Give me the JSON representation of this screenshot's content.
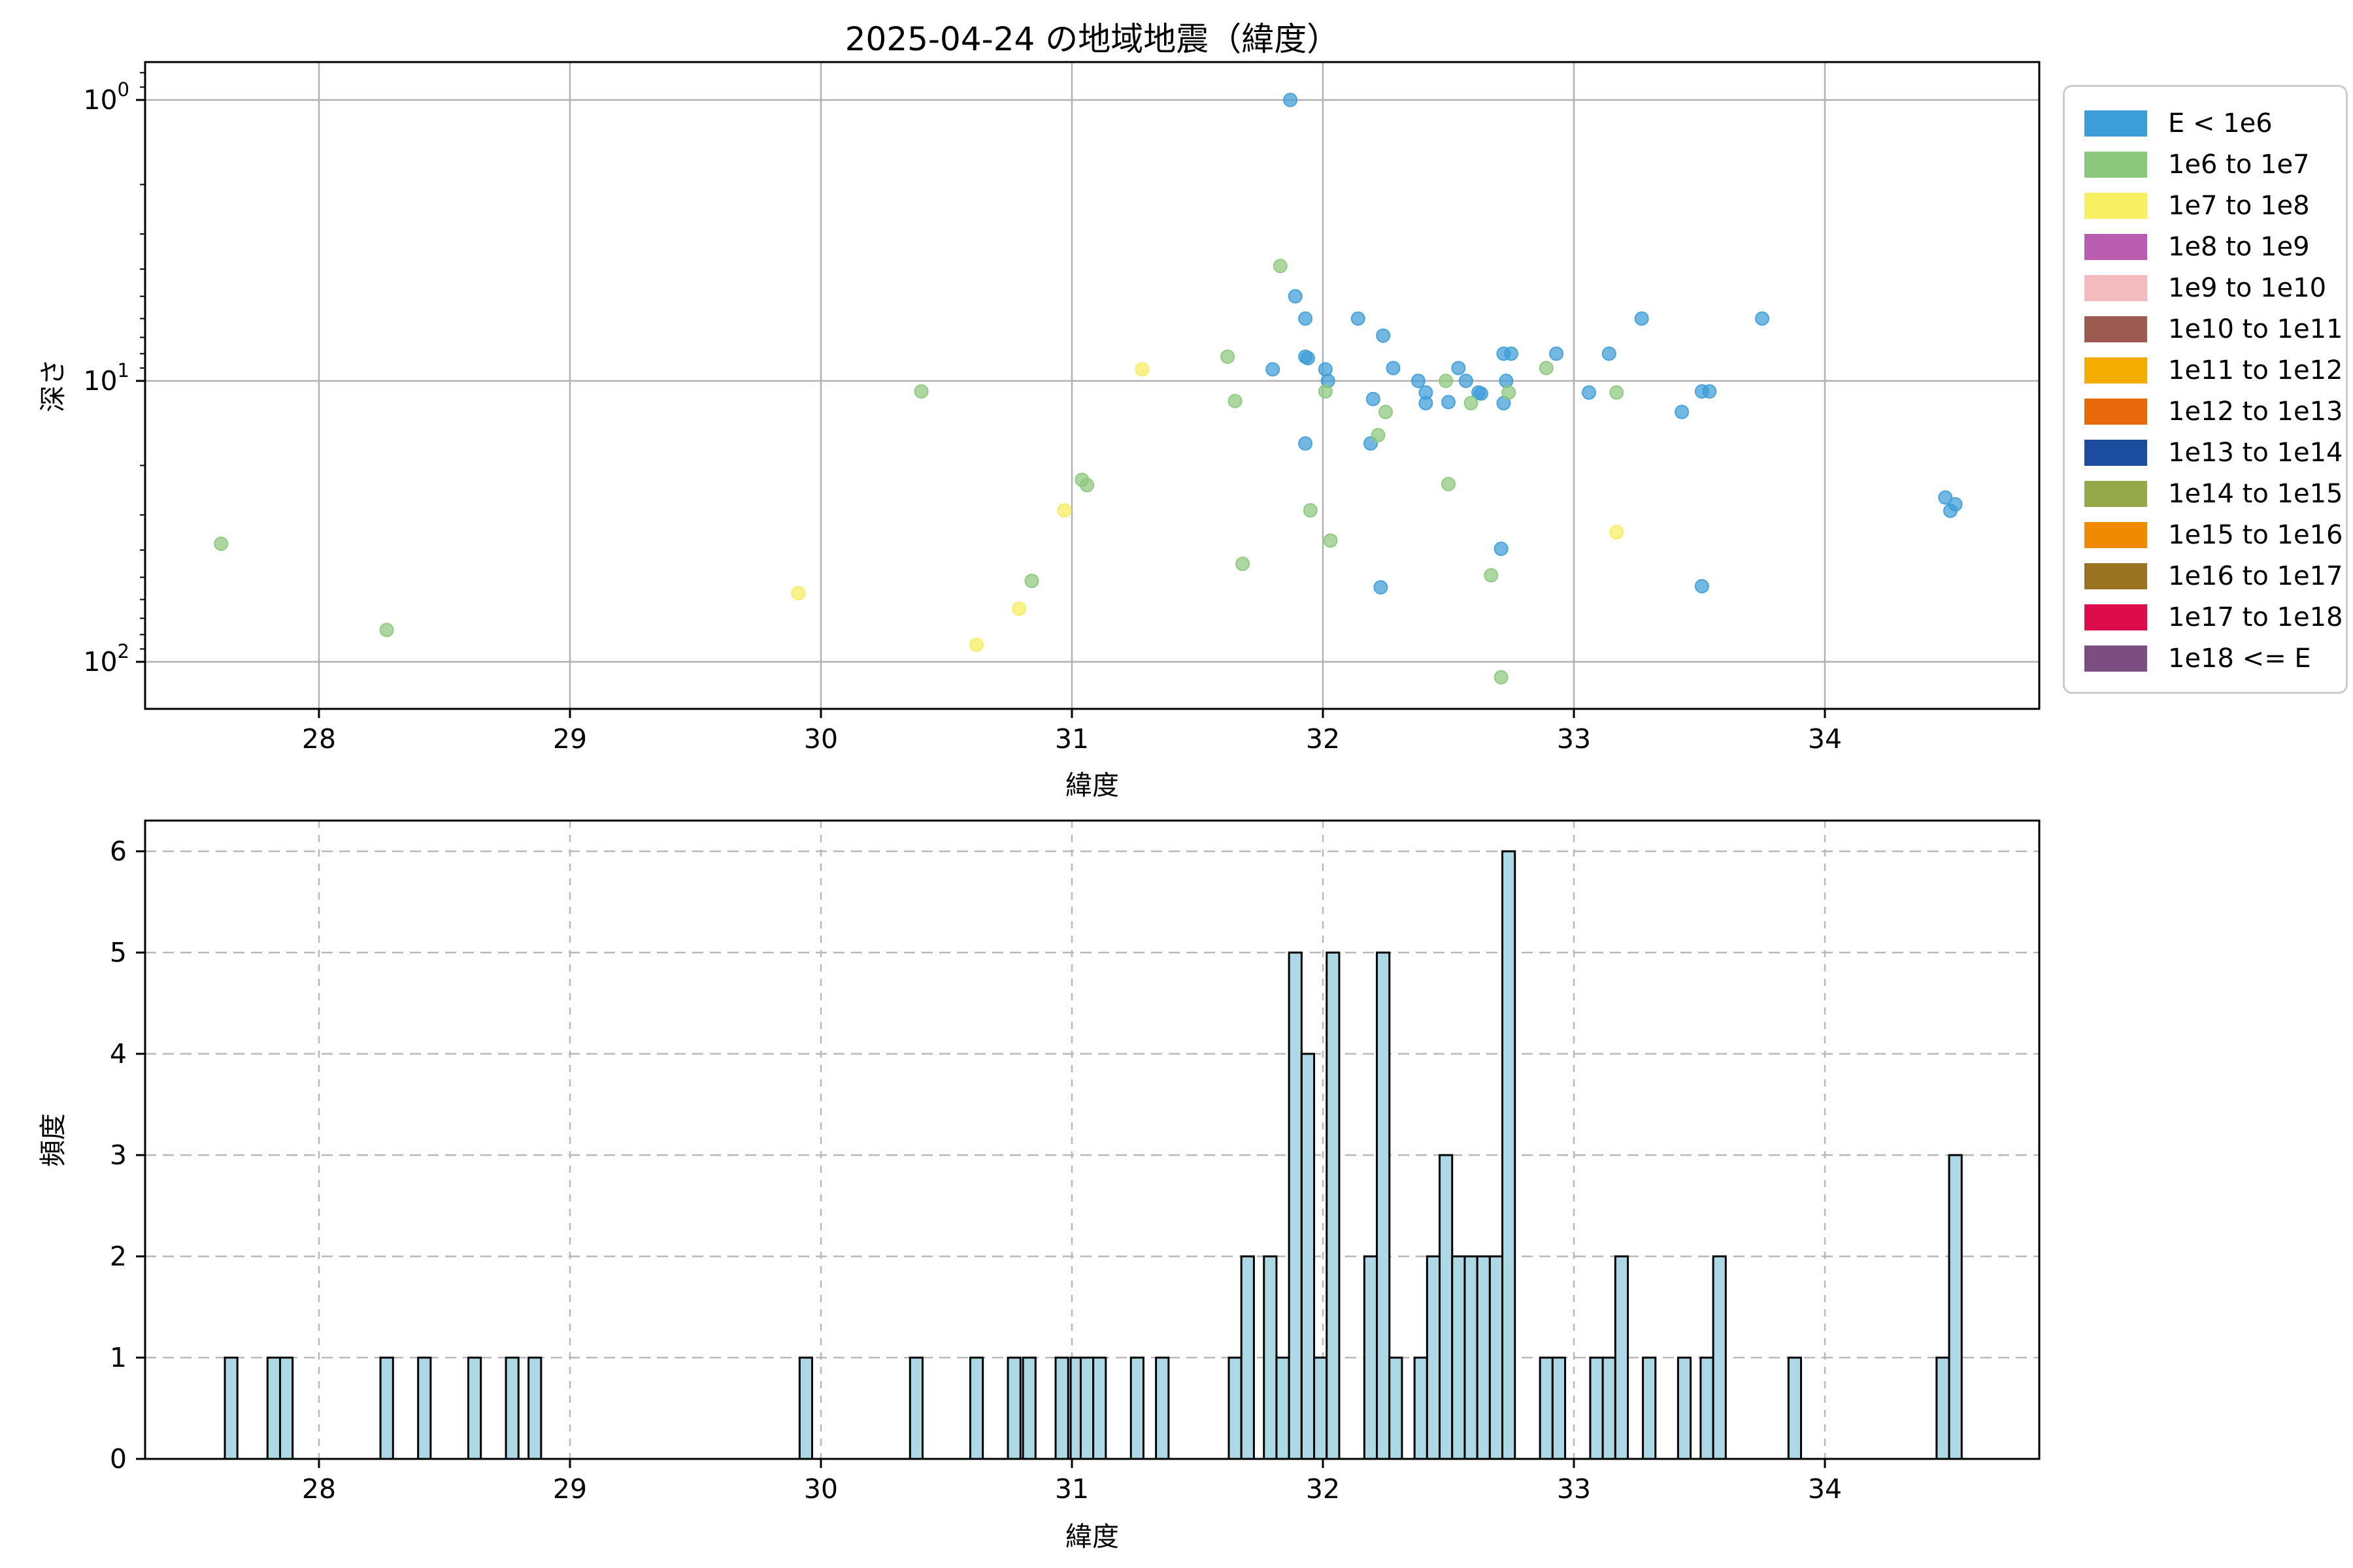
{
  "title": "2025-04-24 の地域地震（緯度）",
  "colors": {
    "background": "#ffffff",
    "grid_solid": "#b0b0b0",
    "grid_dashed": "#b8b8b8",
    "spine": "#000000",
    "bar_fill": "#add8e6",
    "bar_edge": "#000000",
    "cat_blue": "#3d9dd8",
    "cat_green": "#8cc87b",
    "cat_yellow": "#f6ed5e"
  },
  "legend": {
    "items": [
      {
        "label": "E < 1e6",
        "color": "#3d9dd8"
      },
      {
        "label": "1e6 to 1e7",
        "color": "#8cc87b"
      },
      {
        "label": "1e7 to 1e8",
        "color": "#f8f063"
      },
      {
        "label": "1e8 to 1e9",
        "color": "#ba5db1"
      },
      {
        "label": "1e9 to 1e10",
        "color": "#f3bbbe"
      },
      {
        "label": "1e10 to 1e11",
        "color": "#9c5a50"
      },
      {
        "label": "1e11 to 1e12",
        "color": "#f4ac00"
      },
      {
        "label": "1e12 to 1e13",
        "color": "#e8690b"
      },
      {
        "label": "1e13 to 1e14",
        "color": "#1c4c9e"
      },
      {
        "label": "1e14 to 1e15",
        "color": "#95a94a"
      },
      {
        "label": "1e15 to 1e16",
        "color": "#f08a02"
      },
      {
        "label": "1e16 to 1e17",
        "color": "#9a7322"
      },
      {
        "label": "1e17 to 1e18",
        "color": "#dd0d4b"
      },
      {
        "label": "1e18 <= E",
        "color": "#7c4d80"
      }
    ]
  },
  "chart_data": [
    {
      "type": "scatter",
      "title": "2025-04-24 の地域地震（緯度）",
      "xlabel": "緯度",
      "ylabel": "深さ",
      "xlim": [
        27.31,
        34.85
      ],
      "ylim_depth_log_inverted": [
        0.73,
        147
      ],
      "xticks": [
        28,
        29,
        30,
        31,
        32,
        33,
        34
      ],
      "yticks_log_exponents": [
        0,
        1,
        2
      ],
      "grid": "solid",
      "legend_position": "outside-right",
      "series": [
        {
          "name": "E < 1e6",
          "color_key": "cat_blue",
          "points": [
            [
              31.87,
              1.0
            ],
            [
              31.89,
              5.0
            ],
            [
              31.93,
              6.0
            ],
            [
              31.93,
              8.2
            ],
            [
              31.94,
              8.3
            ],
            [
              31.8,
              9.1
            ],
            [
              32.01,
              9.1
            ],
            [
              32.02,
              10.0
            ],
            [
              31.93,
              16.7
            ],
            [
              32.14,
              6.0
            ],
            [
              32.24,
              6.9
            ],
            [
              32.28,
              9.0
            ],
            [
              32.2,
              11.6
            ],
            [
              32.19,
              16.7
            ],
            [
              32.38,
              10.0
            ],
            [
              32.41,
              11.0
            ],
            [
              32.41,
              12.0
            ],
            [
              32.5,
              11.9
            ],
            [
              32.54,
              9.0
            ],
            [
              32.57,
              10.0
            ],
            [
              32.62,
              11.0
            ],
            [
              32.63,
              11.1
            ],
            [
              32.72,
              8.0
            ],
            [
              32.75,
              8.0
            ],
            [
              32.73,
              10.0
            ],
            [
              32.72,
              12.0
            ],
            [
              32.93,
              8.0
            ],
            [
              33.06,
              11.0
            ],
            [
              33.14,
              8.0
            ],
            [
              33.27,
              6.0
            ],
            [
              33.43,
              12.9
            ],
            [
              33.51,
              10.9
            ],
            [
              33.54,
              10.9
            ],
            [
              33.75,
              6.0
            ],
            [
              32.71,
              39.6
            ],
            [
              32.23,
              54.3
            ],
            [
              33.51,
              53.8
            ],
            [
              34.48,
              26.0
            ],
            [
              34.52,
              27.5
            ],
            [
              34.5,
              29.0
            ]
          ]
        },
        {
          "name": "1e6 to 1e7",
          "color_key": "cat_green",
          "points": [
            [
              27.61,
              38.0
            ],
            [
              28.27,
              77.0
            ],
            [
              31.83,
              3.9
            ],
            [
              31.62,
              8.2
            ],
            [
              30.4,
              10.9
            ],
            [
              32.01,
              10.9
            ],
            [
              31.65,
              11.8
            ],
            [
              31.04,
              22.5
            ],
            [
              31.06,
              23.5
            ],
            [
              31.95,
              28.9
            ],
            [
              32.03,
              37.0
            ],
            [
              31.68,
              44.8
            ],
            [
              30.84,
              51.5
            ],
            [
              32.25,
              12.9
            ],
            [
              32.22,
              15.6
            ],
            [
              32.49,
              10.0
            ],
            [
              32.59,
              12.0
            ],
            [
              32.74,
              11.0
            ],
            [
              32.89,
              9.0
            ],
            [
              33.17,
              11.0
            ],
            [
              32.5,
              23.3
            ],
            [
              32.67,
              49.2
            ],
            [
              32.71,
              113.5
            ]
          ]
        },
        {
          "name": "1e7 to 1e8",
          "color_key": "cat_yellow",
          "points": [
            [
              29.91,
              57.0
            ],
            [
              31.28,
              9.1
            ],
            [
              30.97,
              28.9
            ],
            [
              30.79,
              64.7
            ],
            [
              30.62,
              87.0
            ],
            [
              33.17,
              34.6
            ]
          ]
        }
      ]
    },
    {
      "type": "bar",
      "xlabel": "緯度",
      "ylabel": "頻度",
      "xlim": [
        27.31,
        34.85
      ],
      "ylim": [
        0,
        6.3
      ],
      "xticks": [
        28,
        29,
        30,
        31,
        32,
        33,
        34
      ],
      "yticks": [
        0,
        1,
        2,
        3,
        4,
        5,
        6
      ],
      "grid": "dashed",
      "bin_width": 0.05,
      "bars": [
        {
          "lat": 27.65,
          "count": 1
        },
        {
          "lat": 27.82,
          "count": 1
        },
        {
          "lat": 27.87,
          "count": 1
        },
        {
          "lat": 28.27,
          "count": 1
        },
        {
          "lat": 28.42,
          "count": 1
        },
        {
          "lat": 28.62,
          "count": 1
        },
        {
          "lat": 28.77,
          "count": 1
        },
        {
          "lat": 28.86,
          "count": 1
        },
        {
          "lat": 29.94,
          "count": 1
        },
        {
          "lat": 30.38,
          "count": 1
        },
        {
          "lat": 30.62,
          "count": 1
        },
        {
          "lat": 30.77,
          "count": 1
        },
        {
          "lat": 30.83,
          "count": 1
        },
        {
          "lat": 30.96,
          "count": 1
        },
        {
          "lat": 31.02,
          "count": 1
        },
        {
          "lat": 31.06,
          "count": 1
        },
        {
          "lat": 31.11,
          "count": 1
        },
        {
          "lat": 31.26,
          "count": 1
        },
        {
          "lat": 31.36,
          "count": 1
        },
        {
          "lat": 31.65,
          "count": 1
        },
        {
          "lat": 31.7,
          "count": 2
        },
        {
          "lat": 31.79,
          "count": 2
        },
        {
          "lat": 31.84,
          "count": 1
        },
        {
          "lat": 31.89,
          "count": 5
        },
        {
          "lat": 31.94,
          "count": 4
        },
        {
          "lat": 31.99,
          "count": 1
        },
        {
          "lat": 32.04,
          "count": 5
        },
        {
          "lat": 32.19,
          "count": 2
        },
        {
          "lat": 32.24,
          "count": 5
        },
        {
          "lat": 32.29,
          "count": 1
        },
        {
          "lat": 32.39,
          "count": 1
        },
        {
          "lat": 32.44,
          "count": 2
        },
        {
          "lat": 32.49,
          "count": 3
        },
        {
          "lat": 32.54,
          "count": 2
        },
        {
          "lat": 32.59,
          "count": 2
        },
        {
          "lat": 32.64,
          "count": 2
        },
        {
          "lat": 32.69,
          "count": 2
        },
        {
          "lat": 32.74,
          "count": 6
        },
        {
          "lat": 32.89,
          "count": 1
        },
        {
          "lat": 32.94,
          "count": 1
        },
        {
          "lat": 33.09,
          "count": 1
        },
        {
          "lat": 33.14,
          "count": 1
        },
        {
          "lat": 33.19,
          "count": 2
        },
        {
          "lat": 33.3,
          "count": 1
        },
        {
          "lat": 33.44,
          "count": 1
        },
        {
          "lat": 33.53,
          "count": 1
        },
        {
          "lat": 33.58,
          "count": 2
        },
        {
          "lat": 33.88,
          "count": 1
        },
        {
          "lat": 34.47,
          "count": 1
        },
        {
          "lat": 34.52,
          "count": 3
        }
      ]
    }
  ]
}
